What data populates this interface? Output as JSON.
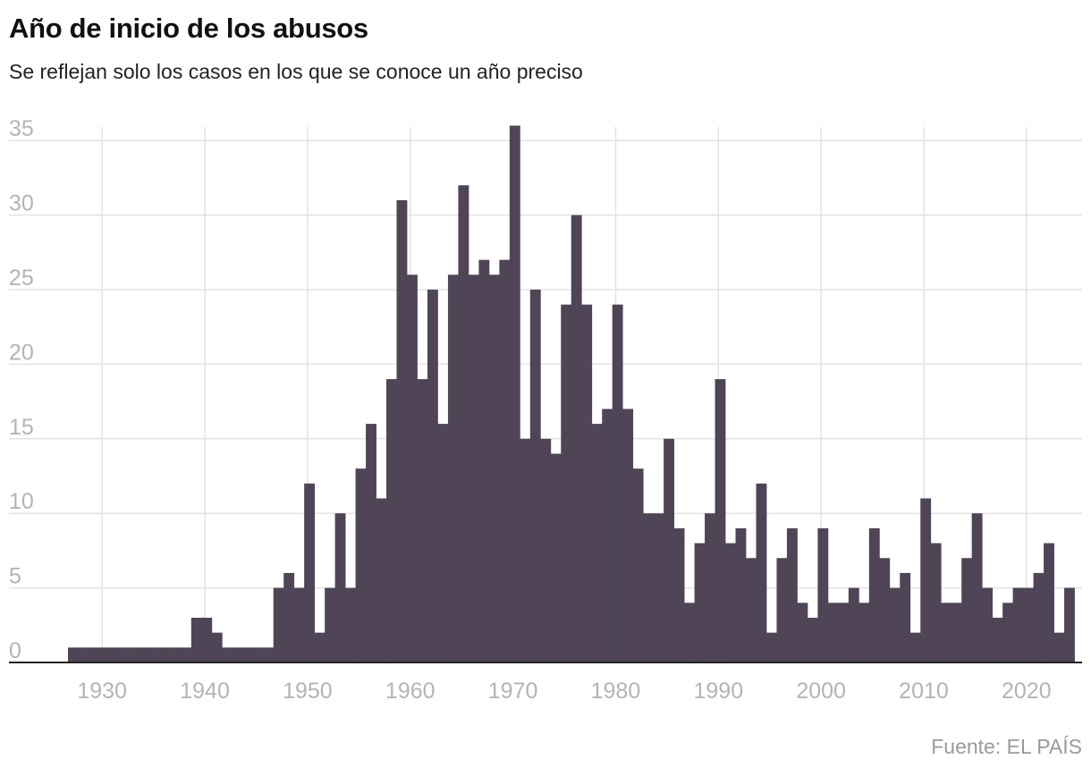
{
  "header": {
    "title": "Año de inicio de los abusos",
    "subtitle": "Se reflejan solo los casos en los que se conoce un año preciso"
  },
  "footer": {
    "source": "Fuente: EL PAÍS"
  },
  "colors": {
    "bars": "#4f4556",
    "grid": "#e3e3e3",
    "axis": "#222222",
    "tick_text": "#b4b4b4"
  },
  "chart_data": {
    "type": "bar",
    "title": "Año de inicio de los abusos",
    "subtitle": "Se reflejan solo los casos en los que se conoce un año preciso",
    "xlabel": "",
    "ylabel": "",
    "xlim": [
      1927,
      2024
    ],
    "ylim": [
      0,
      36
    ],
    "x_ticks": [
      "1930",
      "1940",
      "1950",
      "1960",
      "1970",
      "1980",
      "1990",
      "2000",
      "2010",
      "2020"
    ],
    "y_ticks": [
      "0",
      "5",
      "10",
      "15",
      "20",
      "25",
      "30",
      "35"
    ],
    "grid": true,
    "x": [
      1927,
      1928,
      1929,
      1930,
      1931,
      1932,
      1933,
      1934,
      1935,
      1936,
      1937,
      1938,
      1939,
      1940,
      1941,
      1942,
      1943,
      1944,
      1945,
      1946,
      1947,
      1948,
      1949,
      1950,
      1951,
      1952,
      1953,
      1954,
      1955,
      1956,
      1957,
      1958,
      1959,
      1960,
      1961,
      1962,
      1963,
      1964,
      1965,
      1966,
      1967,
      1968,
      1969,
      1970,
      1971,
      1972,
      1973,
      1974,
      1975,
      1976,
      1977,
      1978,
      1979,
      1980,
      1981,
      1982,
      1983,
      1984,
      1985,
      1986,
      1987,
      1988,
      1989,
      1990,
      1991,
      1992,
      1993,
      1994,
      1995,
      1996,
      1997,
      1998,
      1999,
      2000,
      2001,
      2002,
      2003,
      2004,
      2005,
      2006,
      2007,
      2008,
      2009,
      2010,
      2011,
      2012,
      2013,
      2014,
      2015,
      2016,
      2017,
      2018,
      2019,
      2020,
      2021,
      2022,
      2023,
      2024
    ],
    "values": [
      1,
      1,
      1,
      1,
      1,
      1,
      1,
      1,
      1,
      1,
      1,
      1,
      3,
      3,
      2,
      1,
      1,
      1,
      1,
      1,
      5,
      6,
      5,
      12,
      2,
      5,
      10,
      5,
      13,
      16,
      11,
      19,
      31,
      26,
      19,
      25,
      16,
      26,
      32,
      26,
      27,
      26,
      27,
      36,
      15,
      25,
      15,
      14,
      24,
      30,
      24,
      16,
      17,
      24,
      17,
      13,
      10,
      10,
      15,
      9,
      4,
      8,
      10,
      19,
      8,
      9,
      7,
      12,
      2,
      7,
      9,
      4,
      3,
      9,
      4,
      4,
      5,
      4,
      9,
      7,
      5,
      6,
      2,
      11,
      8,
      4,
      4,
      7,
      10,
      5,
      3,
      4,
      5,
      5,
      6,
      8,
      2,
      5
    ]
  }
}
